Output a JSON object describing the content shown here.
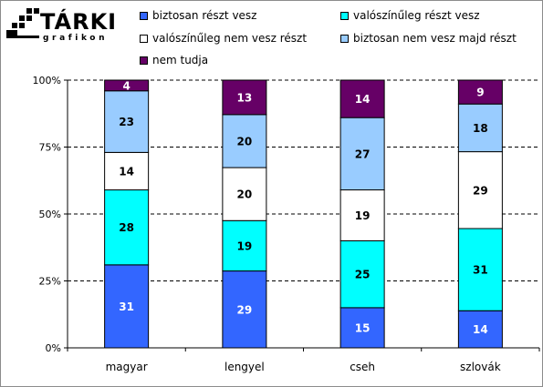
{
  "logo": {
    "brand": "TÁRKI",
    "sub": "grafikon"
  },
  "colors": {
    "biztosan": "#3366ff",
    "valoszinuleg": "#00ffff",
    "valoszinuleg_nem": "#ffffff",
    "biztosan_nem": "#99ccff",
    "nem_tudja": "#660066"
  },
  "chart_data": {
    "type": "bar",
    "stacked": true,
    "percent": true,
    "categories": [
      "magyar",
      "lengyel",
      "cseh",
      "szlovák"
    ],
    "series": [
      {
        "name": "biztosan részt vesz",
        "values": [
          31,
          29,
          15,
          14
        ],
        "label_color": "#ffffff"
      },
      {
        "name": "valószínűleg részt vesz",
        "values": [
          28,
          19,
          25,
          31
        ],
        "label_color": "#000000"
      },
      {
        "name": "valószínűleg nem vesz részt",
        "values": [
          14,
          20,
          19,
          29
        ],
        "label_color": "#000000"
      },
      {
        "name": "biztosan nem vesz majd részt",
        "values": [
          23,
          20,
          27,
          18
        ],
        "label_color": "#000000"
      },
      {
        "name": "nem tudja",
        "values": [
          4,
          13,
          14,
          9
        ],
        "label_color": "#ffffff"
      }
    ],
    "yticks": [
      "0%",
      "25%",
      "50%",
      "75%",
      "100%"
    ],
    "ylim": [
      0,
      100
    ],
    "grid": true,
    "legend_position": "top"
  }
}
